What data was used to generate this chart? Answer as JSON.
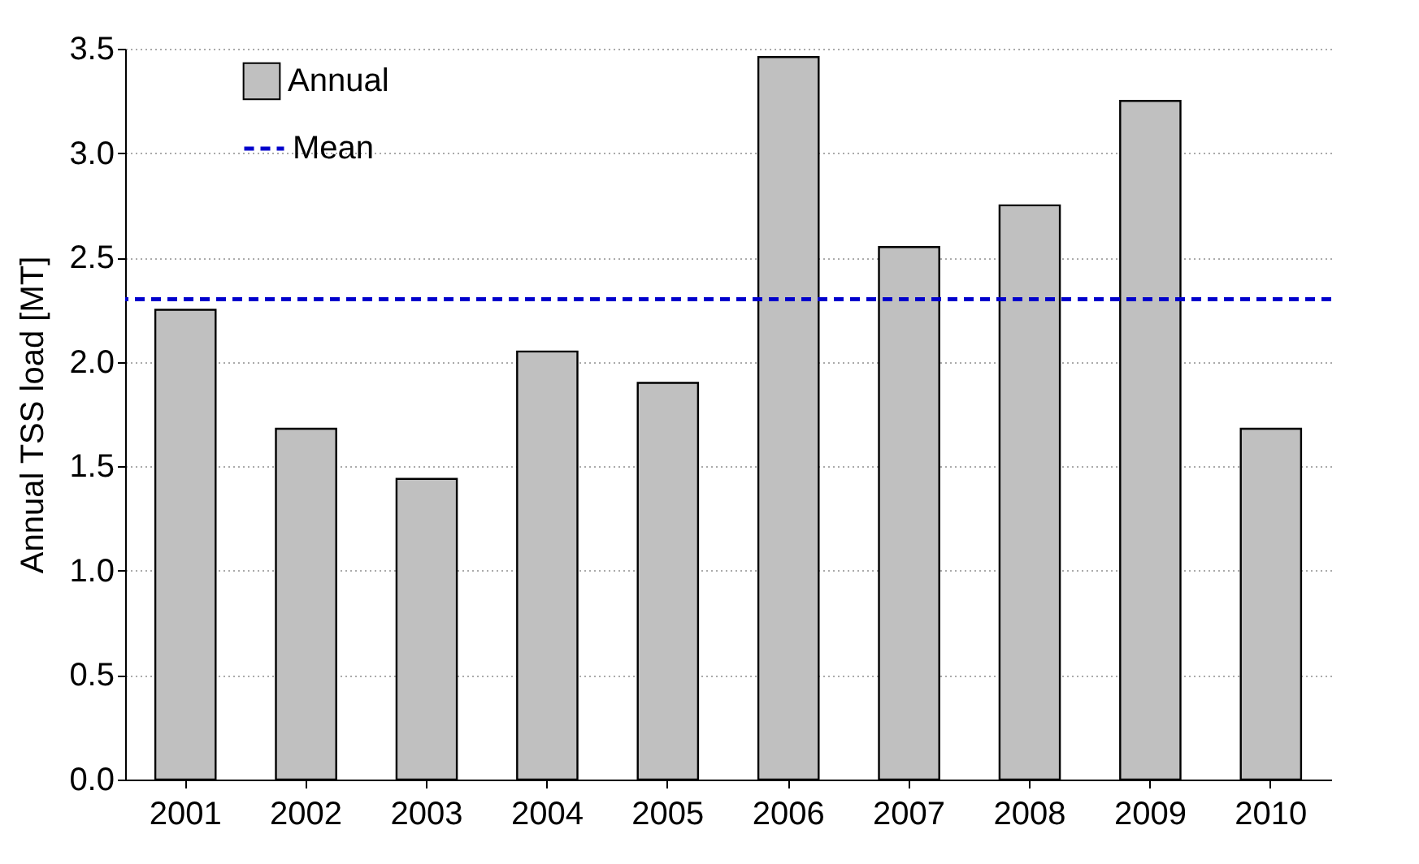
{
  "chart_data": {
    "type": "bar",
    "ylabel": "Annual TSS load [MT]",
    "categories": [
      "2001",
      "2002",
      "2003",
      "2004",
      "2005",
      "2006",
      "2007",
      "2008",
      "2009",
      "2010"
    ],
    "series": [
      {
        "name": "Annual",
        "color": "#c0c0c0",
        "values": [
          2.25,
          1.68,
          1.44,
          2.05,
          1.9,
          3.46,
          2.55,
          2.75,
          3.25,
          1.68
        ]
      }
    ],
    "ylim": [
      0,
      3.5
    ],
    "yticks": [
      {
        "value": 0,
        "label": "0.0"
      },
      {
        "value": 0.5,
        "label": "0.5"
      },
      {
        "value": 1,
        "label": "1.0"
      },
      {
        "value": 1.5,
        "label": "1.5"
      },
      {
        "value": 2,
        "label": "2.0"
      },
      {
        "value": 2.5,
        "label": "2.5"
      },
      {
        "value": 3,
        "label": "3.0"
      },
      {
        "value": 3.5,
        "label": "3.5"
      }
    ],
    "ref_lines": [
      {
        "axis": "y",
        "value": 2.3,
        "label": "Mean",
        "color": "#0000cc",
        "line_style": "dashed"
      }
    ],
    "grid": "y",
    "legend": "top left"
  }
}
